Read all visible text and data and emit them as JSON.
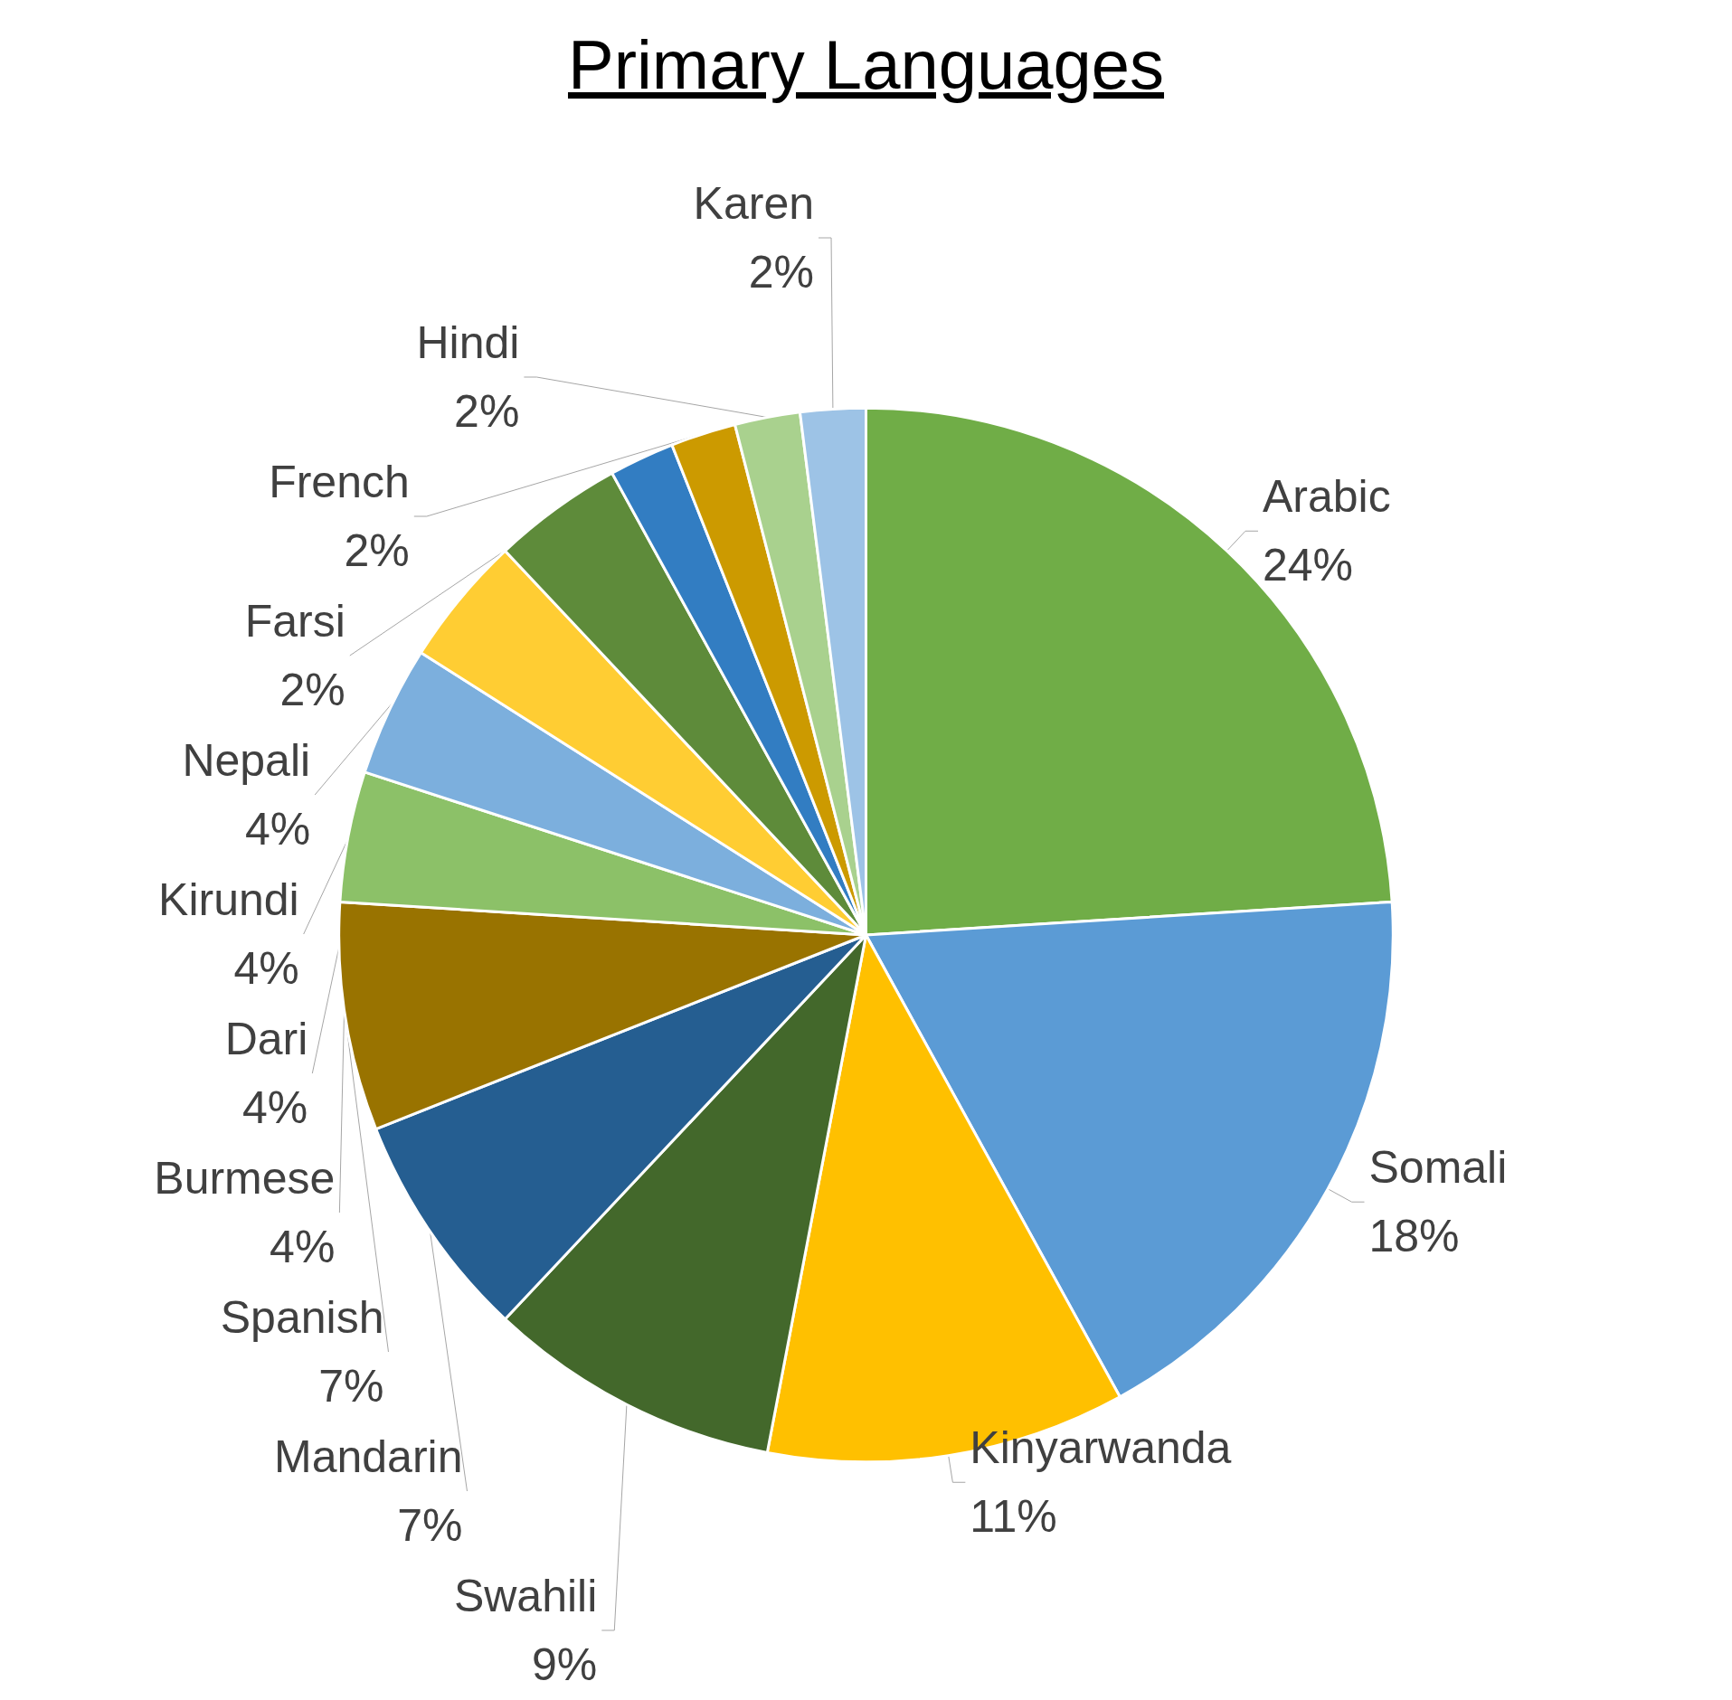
{
  "chart_data": {
    "type": "pie",
    "title": "Primary Languages",
    "categories": [
      "Arabic",
      "Somali",
      "Kinyarwanda",
      "Swahili",
      "Mandarin",
      "Spanish",
      "Burmese",
      "Dari",
      "Kirundi",
      "Nepali",
      "Farsi",
      "French",
      "Hindi",
      "Karen"
    ],
    "values": [
      24,
      18,
      11,
      9,
      7,
      7,
      4,
      4,
      4,
      4,
      2,
      2,
      2,
      2
    ],
    "value_labels": [
      "24%",
      "18%",
      "11%",
      "9%",
      "7%",
      "7%",
      "4%",
      "4%",
      "4%",
      "4%",
      "2%",
      "2%",
      "2%",
      "2%"
    ],
    "colors": [
      "#70ad47",
      "#5b9bd5",
      "#ffc000",
      "#43682b",
      "#255e91",
      "#997300",
      "#8cc168",
      "#7cafdd",
      "#ffcd33",
      "#5e8b3a",
      "#327dc2",
      "#cc9a00",
      "#a9d18e",
      "#9dc3e6"
    ],
    "legend": false
  }
}
